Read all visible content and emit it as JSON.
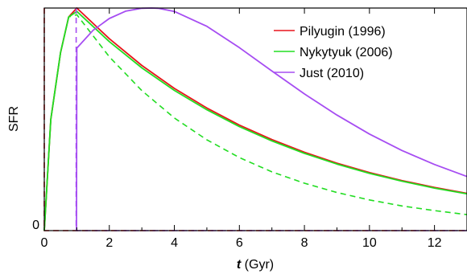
{
  "chart_data": {
    "type": "line",
    "xlabel_italic": "t",
    "xlabel_rest": " (Gyr)",
    "ylabel": "SFR",
    "xlim": [
      0,
      13
    ],
    "ylim": [
      0,
      1
    ],
    "x_ticks": [
      0,
      2,
      4,
      6,
      8,
      10,
      12
    ],
    "x_tick_labels": [
      "0",
      "2",
      "4",
      "6",
      "8",
      "10",
      "12"
    ],
    "y_ticks": [
      0
    ],
    "y_tick_labels": [
      "0"
    ],
    "legend_position": "top-right",
    "legend": [
      {
        "name": "Pilyugin (1996)",
        "color": "#e8141b"
      },
      {
        "name": "Nykytyuk (2006)",
        "color": "#22dd22"
      },
      {
        "name": "Just (2010)",
        "color": "#a64df2"
      }
    ],
    "series": [
      {
        "label": "Pilyugin (1996) solid",
        "color": "#e8141b",
        "dash": "solid",
        "x": [
          0,
          0.2,
          0.5,
          0.75,
          1.0,
          2,
          3,
          4,
          5,
          6,
          7,
          8,
          9,
          10,
          11,
          12,
          13
        ],
        "y": [
          0,
          0.5,
          0.8,
          0.96,
          1.0,
          0.862,
          0.742,
          0.639,
          0.551,
          0.474,
          0.409,
          0.352,
          0.303,
          0.261,
          0.225,
          0.194,
          0.167
        ]
      },
      {
        "label": "Pilyugin (1996) dashed",
        "color": "#e8141b",
        "dash": "dashed",
        "x": [
          0.0,
          0.0,
          0.0,
          13
        ],
        "y": [
          1.0,
          0.0,
          0.0,
          0.0
        ]
      },
      {
        "label": "Nykytyuk (2006) solid",
        "color": "#22dd22",
        "dash": "solid",
        "x": [
          0,
          0.2,
          0.5,
          0.75,
          1.0,
          2,
          3,
          4,
          5,
          6,
          7,
          8,
          9,
          10,
          11,
          12,
          13
        ],
        "y": [
          0,
          0.5,
          0.8,
          0.96,
          0.985,
          0.849,
          0.731,
          0.63,
          0.543,
          0.467,
          0.403,
          0.347,
          0.299,
          0.257,
          0.222,
          0.191,
          0.165
        ]
      },
      {
        "label": "Nykytyuk (2006) dashed",
        "color": "#22dd22",
        "dash": "dashed",
        "x": [
          0,
          0.2,
          0.5,
          0.75,
          1.0,
          2,
          3,
          4,
          5,
          6,
          7,
          8,
          9,
          10,
          11,
          12,
          13
        ],
        "y": [
          0,
          0.5,
          0.8,
          0.96,
          0.97,
          0.781,
          0.629,
          0.506,
          0.408,
          0.328,
          0.264,
          0.213,
          0.171,
          0.138,
          0.111,
          0.09,
          0.072
        ]
      },
      {
        "label": "Just (2010) solid",
        "color": "#a64df2",
        "dash": "solid",
        "x": [
          0.99,
          1.0,
          1.5,
          2,
          2.5,
          3,
          3.3,
          3.5,
          4,
          5,
          6,
          7,
          8,
          9,
          10,
          11,
          12,
          13
        ],
        "y": [
          0.0,
          0.82,
          0.9,
          0.953,
          0.986,
          0.999,
          1.0,
          0.999,
          0.985,
          0.918,
          0.822,
          0.717,
          0.614,
          0.519,
          0.434,
          0.36,
          0.297,
          0.243
        ]
      },
      {
        "label": "Just (2010) dashed",
        "color": "#a64df2",
        "dash": "dashed",
        "x": [
          0.98,
          0.98,
          0.98,
          13
        ],
        "y": [
          1.0,
          0.0,
          0.0,
          0.0
        ]
      }
    ]
  }
}
